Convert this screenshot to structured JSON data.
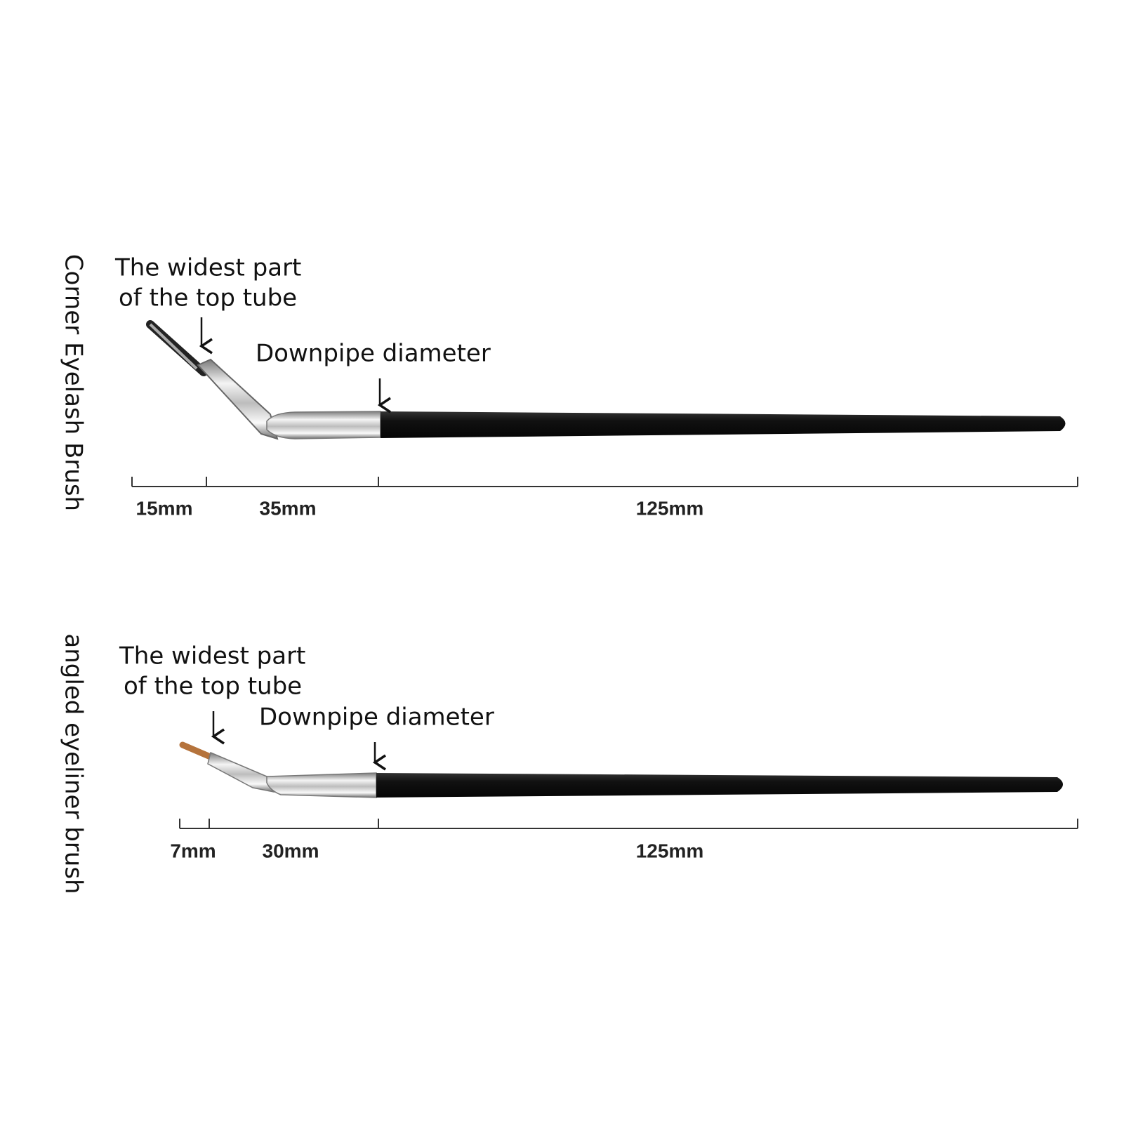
{
  "brushes": [
    {
      "name": "Corner Eyelash Brush",
      "top_tube_label": [
        "The widest part",
        "of the top tube"
      ],
      "downpipe_label": "Downpipe diameter",
      "segments": [
        "15mm",
        "35mm",
        "125mm"
      ]
    },
    {
      "name": "angled eyeliner brush",
      "top_tube_label": [
        "The widest part",
        "of the top tube"
      ],
      "downpipe_label": "Downpipe diameter",
      "segments": [
        "7mm",
        "30mm",
        "125mm"
      ]
    }
  ]
}
